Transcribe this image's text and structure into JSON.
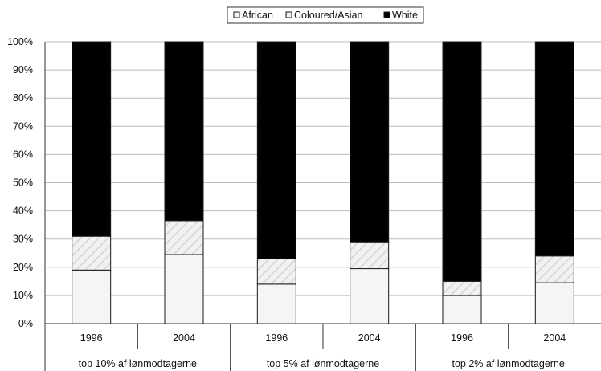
{
  "chart_data": {
    "type": "bar",
    "stacked": true,
    "percent": true,
    "categories": [
      "1996",
      "2004",
      "1996",
      "2004",
      "1996",
      "2004"
    ],
    "groups": [
      {
        "label": "top 10% af lønmodtagerne",
        "categories": [
          "1996",
          "2004"
        ]
      },
      {
        "label": "top 5% af lønmodtagerne",
        "categories": [
          "1996",
          "2004"
        ]
      },
      {
        "label": "top 2% af lønmodtagerne",
        "categories": [
          "1996",
          "2004"
        ]
      }
    ],
    "series": [
      {
        "name": "African",
        "values": [
          19,
          24.5,
          14,
          19.5,
          10,
          14.5
        ]
      },
      {
        "name": "Coloured/Asian",
        "values": [
          12,
          12,
          9,
          9.5,
          5,
          9.5
        ]
      },
      {
        "name": "White",
        "values": [
          69,
          63.5,
          77,
          71,
          85,
          76
        ]
      }
    ],
    "yticks": [
      "0%",
      "10%",
      "20%",
      "30%",
      "40%",
      "50%",
      "60%",
      "70%",
      "80%",
      "90%",
      "100%"
    ],
    "ylim": [
      0,
      100
    ],
    "grid": true,
    "legend_position": "top-center",
    "colors": {
      "African": "#f5f5f5",
      "Coloured/Asian": "#f1f1f1",
      "Coloured/Asian_hatch": "#d4d4d4",
      "White": "#000000",
      "grid": "#bdbdbd",
      "axis": "#333333"
    }
  }
}
